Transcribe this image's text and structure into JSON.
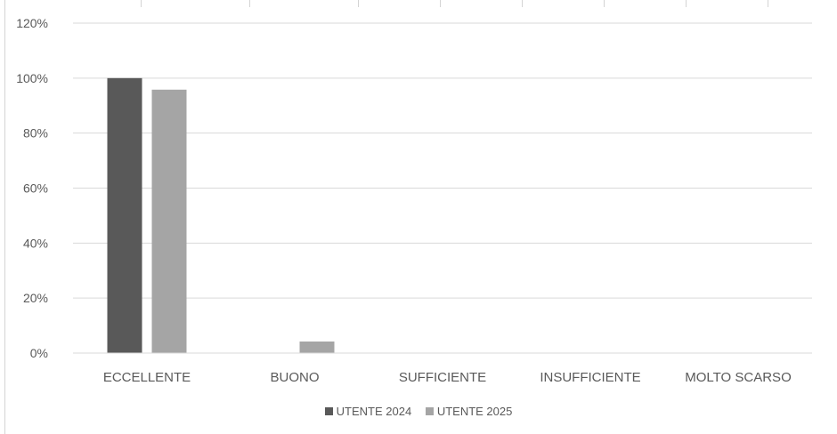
{
  "chart_data": {
    "type": "bar",
    "title": "",
    "xlabel": "",
    "ylabel": "",
    "categories": [
      "ECCELLENTE",
      "BUONO",
      "SUFFICIENTE",
      "INSUFFICIENTE",
      "MOLTO SCARSO"
    ],
    "series": [
      {
        "name": "UTENTE 2024",
        "values": [
          100,
          0,
          0,
          0,
          0
        ],
        "color": "#595959"
      },
      {
        "name": "UTENTE 2025",
        "values": [
          95.8,
          4.2,
          0,
          0,
          0
        ],
        "color": "#a5a5a5"
      }
    ],
    "ylim": [
      0,
      120
    ],
    "yticks": [
      "0%",
      "20%",
      "40%",
      "60%",
      "80%",
      "100%",
      "120%"
    ],
    "grid": true,
    "legend_position": "bottom"
  }
}
